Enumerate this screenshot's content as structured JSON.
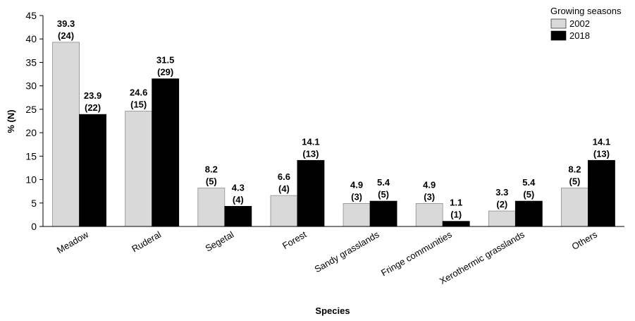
{
  "chart_data": {
    "type": "bar",
    "xlabel": "Species",
    "ylabel": "% (N)",
    "ylim": [
      0,
      45
    ],
    "yticks": [
      0,
      5,
      10,
      15,
      20,
      25,
      30,
      35,
      40,
      45
    ],
    "grid": false,
    "legend": {
      "title": "Growing seasons",
      "position": "top-right"
    },
    "categories": [
      "Meadow",
      "Ruderal",
      "Segetal",
      "Forest",
      "Sandy grasslands",
      "Fringe communities",
      "Xerothermic grasslands",
      "Others"
    ],
    "series": [
      {
        "name": "2002",
        "color": "#d9d9d9",
        "values": [
          39.3,
          24.6,
          8.2,
          6.6,
          4.9,
          4.9,
          3.3,
          8.2
        ],
        "value_labels": [
          "39.3",
          "24.6",
          "8.2",
          "6.6",
          "4.9",
          "4.9",
          "3.3",
          "8.2"
        ],
        "counts": [
          "(24)",
          "(15)",
          "(5)",
          "(4)",
          "(3)",
          "(3)",
          "(2)",
          "(5)"
        ]
      },
      {
        "name": "2018",
        "color": "#000000",
        "values": [
          23.9,
          31.5,
          4.3,
          14.1,
          5.4,
          1.1,
          5.4,
          14.1
        ],
        "value_labels": [
          "23.9",
          "31.5",
          "4.3",
          "14.1",
          "5.4",
          "1.1",
          "5.4",
          "14.1"
        ],
        "counts": [
          "(22)",
          "(29)",
          "(4)",
          "(13)",
          "(5)",
          "(1)",
          "(5)",
          "(13)"
        ]
      }
    ]
  }
}
